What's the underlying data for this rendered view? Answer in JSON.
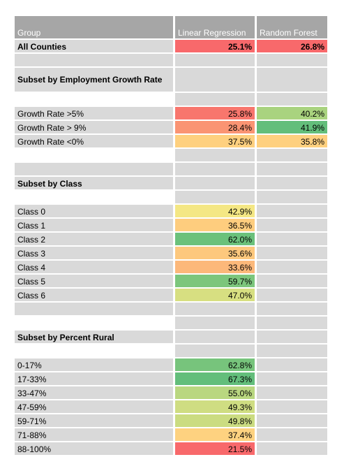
{
  "header": {
    "group": "Group",
    "linear_regression": "Linear Regression",
    "random_forest": "Random Forest"
  },
  "all_counties": {
    "label": "All Counties",
    "lr": "25.1%",
    "rf": "26.8%",
    "lr_color": "#f8696b",
    "rf_color": "#f8696b"
  },
  "sections": {
    "employment": {
      "title": "Subset by Employment Growth Rate",
      "rows": [
        {
          "label": "Growth Rate >5%",
          "lr": "25.8%",
          "rf": "40.2%",
          "lr_color": "#f8766d",
          "rf_color": "#a9d37f"
        },
        {
          "label": "Growth Rate > 9%",
          "lr": "28.4%",
          "rf": "41.9%",
          "lr_color": "#fa9473",
          "rf_color": "#63be7b"
        },
        {
          "label": "Growth Rate <0%",
          "lr": "37.5%",
          "rf": "35.8%",
          "lr_color": "#fed07f",
          "rf_color": "#fed07f"
        }
      ]
    },
    "class": {
      "title": "Subset by Class",
      "rows": [
        {
          "label": "Class 0",
          "lr": "42.9%",
          "rf": "",
          "lr_color": "#f4e784",
          "rf_color": ""
        },
        {
          "label": "Class 1",
          "lr": "36.5%",
          "rf": "",
          "lr_color": "#fecd7e",
          "rf_color": ""
        },
        {
          "label": "Class 2",
          "lr": "62.0%",
          "rf": "",
          "lr_color": "#6bc17b",
          "rf_color": ""
        },
        {
          "label": "Class 3",
          "lr": "35.6%",
          "rf": "",
          "lr_color": "#fdc87d",
          "rf_color": ""
        },
        {
          "label": "Class 4",
          "lr": "33.6%",
          "rf": "",
          "lr_color": "#fcb87a",
          "rf_color": ""
        },
        {
          "label": "Class 5",
          "lr": "59.7%",
          "rf": "",
          "lr_color": "#7cc67c",
          "rf_color": ""
        },
        {
          "label": "Class 6",
          "lr": "47.0%",
          "rf": "",
          "lr_color": "#d7df81",
          "rf_color": ""
        }
      ]
    },
    "rural": {
      "title": "Subset by Percent Rural",
      "rows": [
        {
          "label": "0-17%",
          "lr": "62.8%",
          "rf": "",
          "lr_color": "#77c47c",
          "rf_color": ""
        },
        {
          "label": "17-33%",
          "lr": "67.3%",
          "rf": "",
          "lr_color": "#63be7b",
          "rf_color": ""
        },
        {
          "label": "33-47%",
          "lr": "55.0%",
          "rf": "",
          "lr_color": "#b9d780",
          "rf_color": ""
        },
        {
          "label": "47-59%",
          "lr": "49.3%",
          "rf": "",
          "lr_color": "#cfdd82",
          "rf_color": ""
        },
        {
          "label": "59-71%",
          "lr": "49.8%",
          "rf": "",
          "lr_color": "#cbdc81",
          "rf_color": ""
        },
        {
          "label": "71-88%",
          "lr": "37.4%",
          "rf": "",
          "lr_color": "#fed280",
          "rf_color": ""
        },
        {
          "label": "88-100%",
          "lr": "21.5%",
          "rf": "",
          "lr_color": "#f8696b",
          "rf_color": ""
        }
      ]
    }
  }
}
